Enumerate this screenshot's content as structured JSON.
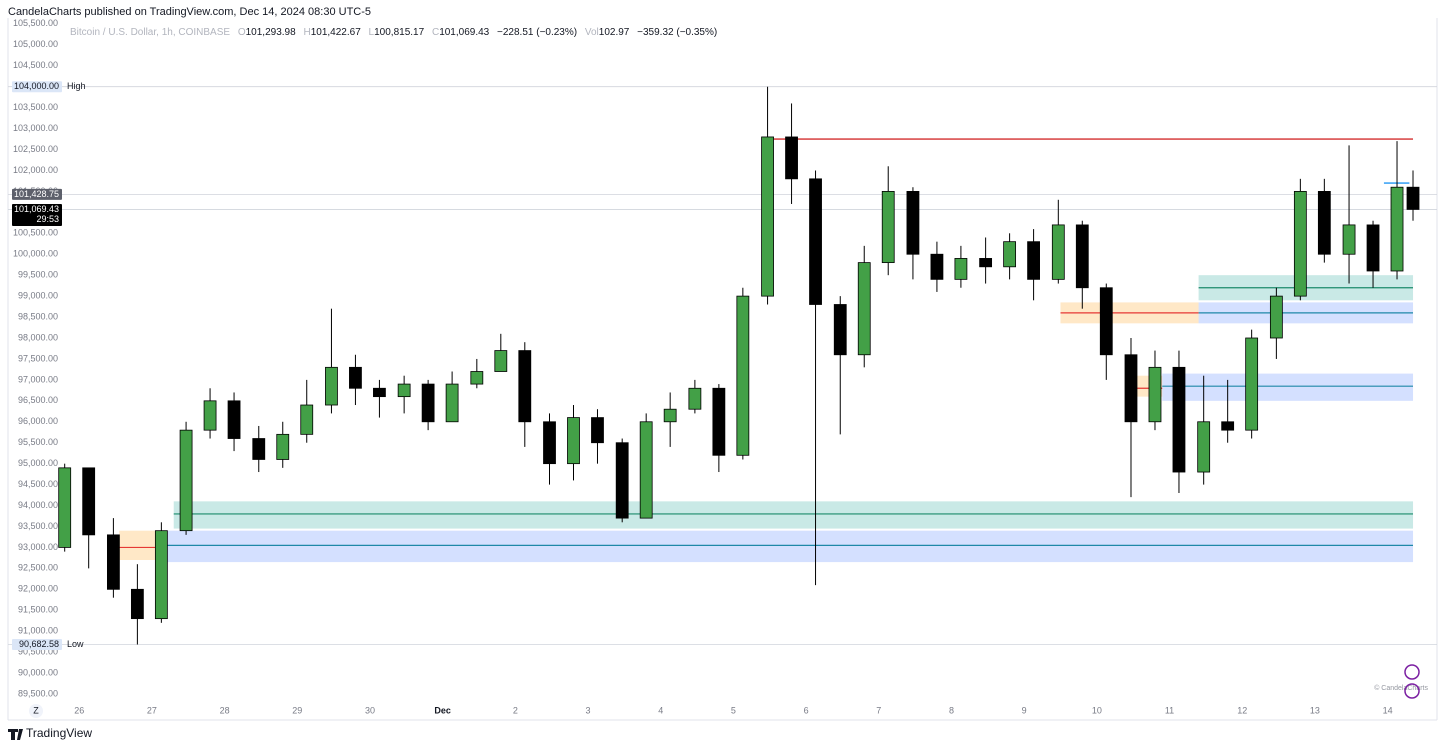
{
  "header": "CandelaCharts published on TradingView.com, Dec 14, 2024 08:30 UTC-5",
  "legend": {
    "symbol": "Bitcoin / U.S. Dollar, 1h, COINBASE",
    "o_label": "O",
    "o": "101,293.98",
    "h_label": "H",
    "h": "101,422.67",
    "l_label": "L",
    "l": "100,815.17",
    "c_label": "C",
    "c": "101,069.43",
    "change": "−228.51 (−0.23%)",
    "vol_label": "Vol",
    "vol": "102.97",
    "vol_change": "−359.32 (−0.35%)"
  },
  "footer": {
    "brand": "TradingView",
    "zoom": "Z",
    "watermark": "© CandelaCharts"
  },
  "chart_data": {
    "type": "candlestick",
    "ylim": [
      88880,
      105640
    ],
    "xlim": [
      -0.98,
      18.68
    ],
    "grid": false,
    "up_color": "#43a047",
    "down_color": "#000000",
    "wick_color": "#000000",
    "yticks": [
      {
        "value": 89500,
        "label": "89,500.00"
      },
      {
        "value": 90000,
        "label": "90,000.00"
      },
      {
        "value": 90500,
        "label": "90,500.00"
      },
      {
        "value": 91000,
        "label": "91,000.00"
      },
      {
        "value": 91500,
        "label": "91,500.00"
      },
      {
        "value": 92000,
        "label": "92,000.00"
      },
      {
        "value": 92500,
        "label": "92,500.00"
      },
      {
        "value": 93000,
        "label": "93,000.00"
      },
      {
        "value": 93500,
        "label": "93,500.00"
      },
      {
        "value": 94000,
        "label": "94,000.00"
      },
      {
        "value": 94500,
        "label": "94,500.00"
      },
      {
        "value": 95000,
        "label": "95,000.00"
      },
      {
        "value": 95500,
        "label": "95,500.00"
      },
      {
        "value": 96000,
        "label": "96,000.00"
      },
      {
        "value": 96500,
        "label": "96,500.00"
      },
      {
        "value": 97000,
        "label": "97,000.00"
      },
      {
        "value": 97500,
        "label": "97,500.00"
      },
      {
        "value": 98000,
        "label": "98,000.00"
      },
      {
        "value": 98500,
        "label": "98,500.00"
      },
      {
        "value": 99000,
        "label": "99,000.00"
      },
      {
        "value": 99500,
        "label": "99,500.00"
      },
      {
        "value": 100000,
        "label": "100,000.00"
      },
      {
        "value": 100500,
        "label": "100,500.00"
      },
      {
        "value": 101000,
        "label": "101,000.00"
      },
      {
        "value": 101500,
        "label": "101,500.00"
      },
      {
        "value": 102000,
        "label": "102,000.00"
      },
      {
        "value": 102500,
        "label": "102,500.00"
      },
      {
        "value": 103000,
        "label": "103,000.00"
      },
      {
        "value": 103500,
        "label": "103,500.00"
      },
      {
        "value": 104000,
        "label": "104,000.00"
      },
      {
        "value": 104500,
        "label": "104,500.00"
      },
      {
        "value": 105000,
        "label": "105,000.00"
      },
      {
        "value": 105500,
        "label": "105,500.00"
      }
    ],
    "xticks": [
      {
        "value": 0,
        "label": "26"
      },
      {
        "value": 1,
        "label": "27"
      },
      {
        "value": 2,
        "label": "28"
      },
      {
        "value": 3,
        "label": "29"
      },
      {
        "value": 4,
        "label": "30"
      },
      {
        "value": 5,
        "label": "Dec"
      },
      {
        "value": 6,
        "label": "2"
      },
      {
        "value": 7,
        "label": "3"
      },
      {
        "value": 8,
        "label": "4"
      },
      {
        "value": 9,
        "label": "5"
      },
      {
        "value": 10,
        "label": "6"
      },
      {
        "value": 11,
        "label": "7"
      },
      {
        "value": 12,
        "label": "8"
      },
      {
        "value": 13,
        "label": "9"
      },
      {
        "value": 14,
        "label": "10"
      },
      {
        "value": 15,
        "label": "11"
      },
      {
        "value": 16,
        "label": "12"
      },
      {
        "value": 17,
        "label": "13"
      },
      {
        "value": 18,
        "label": "14"
      }
    ],
    "candles": {
      "x": [
        -0.2,
        0.13,
        0.47,
        0.8,
        1.13,
        1.47,
        1.8,
        2.13,
        2.47,
        2.8,
        3.13,
        3.47,
        3.8,
        4.13,
        4.47,
        4.8,
        5.13,
        5.47,
        5.8,
        6.13,
        6.47,
        6.8,
        7.13,
        7.47,
        7.8,
        8.13,
        8.47,
        8.8,
        9.13,
        9.47,
        9.8,
        10.13,
        10.47,
        10.8,
        11.13,
        11.47,
        11.8,
        12.13,
        12.47,
        12.8,
        13.13,
        13.47,
        13.8,
        14.13,
        14.47,
        14.8,
        15.13,
        15.47,
        15.8,
        16.13,
        16.47,
        16.8,
        17.13,
        17.47,
        17.8,
        18.13,
        18.35
      ],
      "open": [
        93000,
        94900,
        93300,
        92000,
        91300,
        93400,
        95800,
        96500,
        95600,
        95100,
        95700,
        96400,
        97300,
        96800,
        96600,
        96900,
        96000,
        96900,
        97200,
        97700,
        96000,
        95000,
        96100,
        95500,
        93700,
        96000,
        96300,
        96800,
        95200,
        99000,
        102800,
        101800,
        98800,
        97600,
        99800,
        101500,
        100000,
        99400,
        99900,
        99700,
        100300,
        99400,
        100700,
        99200,
        97600,
        96000,
        97300,
        94800,
        96000,
        95800,
        98000,
        99000,
        101500,
        100000,
        100700,
        99600,
        101600
      ],
      "high": [
        95000,
        94900,
        93700,
        92600,
        93600,
        96000,
        96800,
        96700,
        95900,
        96000,
        97000,
        98700,
        97600,
        97000,
        97100,
        97000,
        97200,
        97500,
        98100,
        97900,
        96200,
        96400,
        96300,
        95600,
        96200,
        96700,
        97000,
        96900,
        99200,
        104000,
        103600,
        102000,
        99000,
        100200,
        102100,
        101600,
        100300,
        100200,
        100400,
        100500,
        100600,
        101300,
        100800,
        99300,
        98000,
        97700,
        97700,
        97100,
        97000,
        98200,
        99200,
        101800,
        101800,
        102600,
        100800,
        102700,
        102000
      ],
      "low": [
        92900,
        92500,
        91800,
        90682.58,
        91200,
        93300,
        95600,
        95300,
        94800,
        94900,
        95500,
        96200,
        96400,
        96100,
        96200,
        95800,
        96500,
        96800,
        97200,
        95400,
        94500,
        94600,
        95000,
        93600,
        93800,
        95400,
        96200,
        94800,
        95100,
        98800,
        101200,
        92100,
        95700,
        97300,
        99500,
        99400,
        99100,
        99200,
        99300,
        99400,
        98900,
        99300,
        98700,
        97000,
        94200,
        95800,
        94300,
        94500,
        95500,
        95600,
        97500,
        98900,
        99800,
        99300,
        99200,
        99400,
        100800
      ],
      "close": [
        94900,
        93300,
        92000,
        91300,
        93400,
        95800,
        96500,
        95600,
        95100,
        95700,
        96400,
        97300,
        96800,
        96600,
        96900,
        96000,
        96900,
        97200,
        97700,
        96000,
        95000,
        96100,
        95500,
        93700,
        96000,
        96300,
        96800,
        95200,
        99000,
        102800,
        101800,
        98800,
        97600,
        99800,
        101500,
        100000,
        99400,
        99900,
        99700,
        100300,
        99400,
        100700,
        99200,
        97600,
        96000,
        97300,
        94800,
        96000,
        95800,
        98000,
        99000,
        101500,
        100000,
        100700,
        99600,
        101600,
        101069.43
      ]
    },
    "zones": [
      {
        "y0": 92700,
        "y1": 93400,
        "x0": 0.55,
        "x1": 1.07,
        "line": 93000,
        "fill": "rgba(255,152,0,0.22)",
        "line_color": "#e53935"
      },
      {
        "y0": 93450,
        "y1": 94100,
        "x0": 1.3,
        "x1": 18.35,
        "line": 93800,
        "fill": "rgba(38,166,154,0.25)",
        "line_color": "#1b8a6b"
      },
      {
        "y0": 92650,
        "y1": 93400,
        "x0": 1.07,
        "x1": 18.35,
        "line": 93050,
        "fill": "rgba(41,98,255,0.2)",
        "line_color": "#1e88a8"
      },
      {
        "y0": 98350,
        "y1": 98850,
        "x0": 13.5,
        "x1": 15.4,
        "line": 98600,
        "fill": "rgba(255,152,0,0.22)",
        "line_color": "#e53935"
      },
      {
        "y0": 98900,
        "y1": 99500,
        "x0": 15.4,
        "x1": 18.35,
        "line": 99200,
        "fill": "rgba(38,166,154,0.25)",
        "line_color": "#1b8a6b"
      },
      {
        "y0": 98350,
        "y1": 98850,
        "x0": 15.4,
        "x1": 18.35,
        "line": 98600,
        "fill": "rgba(41,98,255,0.2)",
        "line_color": "#1e88a8"
      },
      {
        "y0": 96600,
        "y1": 97100,
        "x0": 14.45,
        "x1": 14.9,
        "line": 96800,
        "fill": "rgba(255,152,0,0.22)",
        "line_color": "#e53935"
      },
      {
        "y0": 96500,
        "y1": 97150,
        "x0": 14.9,
        "x1": 18.35,
        "line": 96850,
        "fill": "rgba(41,98,255,0.2)",
        "line_color": "#1e88a8"
      }
    ],
    "levels": [
      {
        "value": 102750,
        "x0": 9.4,
        "x1": 18.35,
        "color": "#d32f2f"
      },
      {
        "value": 101700,
        "x0": 17.95,
        "x1": 18.3,
        "color": "#2196f3"
      }
    ],
    "markers": [
      {
        "value": 104000,
        "label": "104,000.00",
        "text": "High",
        "bg": "#dbe6f7",
        "fg": "#131722"
      },
      {
        "value": 90682.58,
        "label": "90,682.58",
        "text": "Low",
        "bg": "#dbe6f7",
        "fg": "#131722"
      },
      {
        "value": 101428.75,
        "label": "101,428.75",
        "bg": "#5d606b",
        "fg": "#ffffff"
      },
      {
        "value": 101069.43,
        "label": "101,069.43",
        "countdown": "29:53",
        "bg": "#000000",
        "fg": "#ffffff"
      }
    ]
  }
}
